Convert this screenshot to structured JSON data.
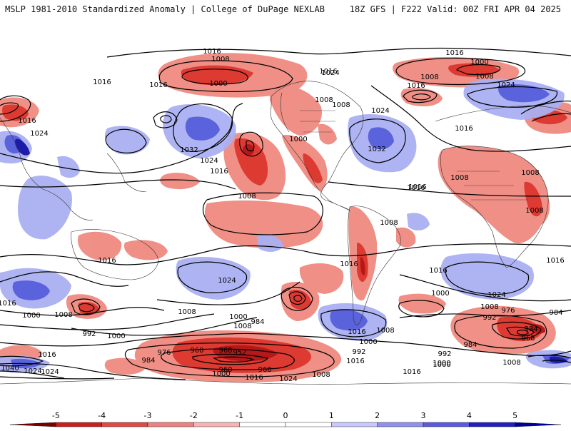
{
  "header": {
    "title": "MSLP 1981-2010 Standardized Anomaly | College of DuPage NEXLAB",
    "valid": "18Z GFS | F222 Valid: 00Z FRI APR 04 2025"
  },
  "colorbar": {
    "ticks": [
      "-5",
      "-4",
      "-3",
      "-2",
      "-1",
      "0",
      "1",
      "2",
      "3",
      "4",
      "5"
    ],
    "colors": [
      "#7a0000",
      "#c81e1e",
      "#e04848",
      "#f08080",
      "#f8b4b4",
      "#ffffff",
      "#ffffff",
      "#c8c8ff",
      "#9090f0",
      "#5a5ae0",
      "#2020c0",
      "#0000a0"
    ]
  },
  "map": {
    "neg_color": "#ef8a80",
    "neg_strong": "#dd3a32",
    "neg_core": "#b51818",
    "pos_color": "#aab0f2",
    "pos_strong": "#5a63dc",
    "pos_core": "#1c1ca8",
    "contour_labels": [
      {
        "t": "1016"
      },
      {
        "t": "1008"
      },
      {
        "t": "1000"
      },
      {
        "t": "1016"
      },
      {
        "t": "1016"
      },
      {
        "t": "1016"
      },
      {
        "t": "1000"
      },
      {
        "t": "1008"
      },
      {
        "t": "1016"
      },
      {
        "t": "1024"
      },
      {
        "t": "1016"
      },
      {
        "t": "1024"
      },
      {
        "t": "1008"
      },
      {
        "t": "1008"
      },
      {
        "t": "1024"
      },
      {
        "t": "1016"
      },
      {
        "t": "1024"
      },
      {
        "t": "1032"
      },
      {
        "t": "1024"
      },
      {
        "t": "1016"
      },
      {
        "t": "1008"
      },
      {
        "t": "1000"
      },
      {
        "t": "1032"
      },
      {
        "t": "1016"
      },
      {
        "t": "1008"
      },
      {
        "t": "1008"
      },
      {
        "t": "1016"
      },
      {
        "t": "1008"
      },
      {
        "t": "1008"
      },
      {
        "t": "1016"
      },
      {
        "t": "1016"
      },
      {
        "t": "1016"
      },
      {
        "t": "1024"
      },
      {
        "t": "1016"
      },
      {
        "t": "1008"
      },
      {
        "t": "1016"
      },
      {
        "t": "1016"
      },
      {
        "t": "1008"
      },
      {
        "t": "1000"
      },
      {
        "t": "1024"
      },
      {
        "t": "1000"
      },
      {
        "t": "1008"
      },
      {
        "t": "984"
      },
      {
        "t": "992"
      },
      {
        "t": "1000"
      },
      {
        "t": "1008"
      },
      {
        "t": "1000"
      },
      {
        "t": "984"
      },
      {
        "t": "1016"
      },
      {
        "t": "1008"
      },
      {
        "t": "1000"
      },
      {
        "t": "1008"
      },
      {
        "t": "976"
      },
      {
        "t": "984"
      },
      {
        "t": "992"
      },
      {
        "t": "968"
      },
      {
        "t": "960"
      },
      {
        "t": "968"
      },
      {
        "t": "952"
      },
      {
        "t": "976"
      },
      {
        "t": "984"
      },
      {
        "t": "1000"
      },
      {
        "t": "960"
      },
      {
        "t": "968"
      },
      {
        "t": "1016"
      },
      {
        "t": "1024"
      },
      {
        "t": "1008"
      },
      {
        "t": "992"
      },
      {
        "t": "992"
      },
      {
        "t": "1000"
      },
      {
        "t": "984"
      },
      {
        "t": "1008"
      },
      {
        "t": "1016"
      },
      {
        "t": "1024"
      },
      {
        "t": "1016"
      },
      {
        "t": "1040"
      },
      {
        "t": "1024"
      },
      {
        "t": "1000"
      },
      {
        "t": "1016"
      }
    ]
  }
}
